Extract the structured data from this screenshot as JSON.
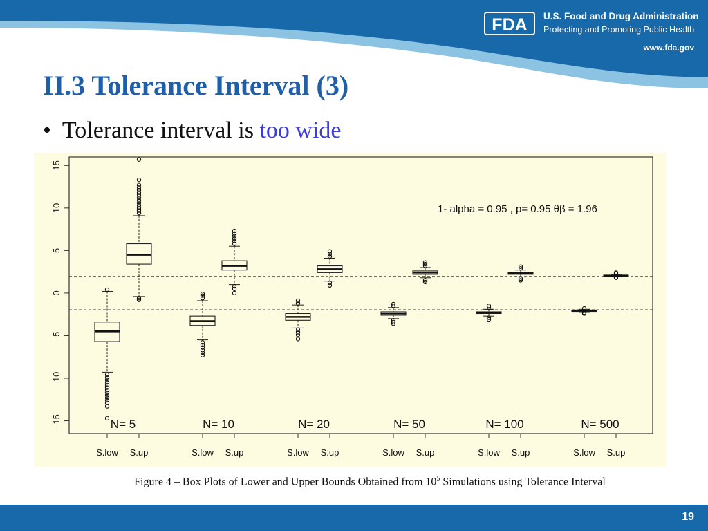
{
  "header": {
    "logo_text": "FDA",
    "org_name": "U.S. Food and Drug Administration",
    "tagline": "Protecting and Promoting Public Health",
    "url": "www.fda.gov",
    "colors": {
      "band": "#1769aa",
      "band_light": "#8cc3e3"
    }
  },
  "slide": {
    "title": "II.3 Tolerance Interval (3)",
    "bullet_text": "Tolerance interval is ",
    "bullet_highlight": "too wide",
    "bullet_glyph": "•",
    "page_number": "19",
    "title_color": "#1f5ea8",
    "highlight_color": "#3b3be0"
  },
  "caption": {
    "prefix": "Figure 4 – Box Plots of Lower and Upper Bounds Obtained from 10",
    "superscript": "5",
    "suffix": " Simulations using Tolerance Interval"
  },
  "chart_data": {
    "type": "box",
    "ylim": [
      -16.5,
      16
    ],
    "yticks": [
      -15,
      -10,
      -5,
      0,
      5,
      10,
      15
    ],
    "annotation": "1- alpha = 0.95 , p= 0.95 θβ = 1.96",
    "reference_lines": [
      1.96,
      -1.96
    ],
    "background": "#fdfbe0",
    "groups": [
      {
        "label": "N= 5",
        "boxes": [
          {
            "label": "S.low",
            "whisker_low": -9.3,
            "q1": -5.7,
            "median": -4.5,
            "q3": -3.4,
            "whisker_high": 0.2,
            "outliers": [
              -9.6,
              -9.9,
              -10.2,
              -10.5,
              -10.8,
              -11.1,
              -11.4,
              -11.7,
              -12.0,
              -12.3,
              -12.6,
              -12.9,
              -13.3,
              0.4,
              -14.7
            ]
          },
          {
            "label": "S.up",
            "whisker_low": -0.4,
            "q1": 3.4,
            "median": 4.5,
            "q3": 5.8,
            "whisker_high": 9.1,
            "outliers": [
              9.4,
              9.7,
              10.0,
              10.3,
              10.6,
              10.9,
              11.2,
              11.5,
              11.8,
              12.1,
              12.4,
              12.7,
              13.3,
              15.7,
              -0.6,
              -0.8
            ]
          }
        ]
      },
      {
        "label": "N= 10",
        "boxes": [
          {
            "label": "S.low",
            "whisker_low": -5.5,
            "q1": -3.8,
            "median": -3.3,
            "q3": -2.7,
            "whisker_high": -0.9,
            "outliers": [
              -5.8,
              -6.1,
              -6.4,
              -6.7,
              -7.0,
              -7.3,
              -0.6,
              -0.3,
              -0.1
            ]
          },
          {
            "label": "S.up",
            "whisker_low": 1.0,
            "q1": 2.7,
            "median": 3.2,
            "q3": 3.8,
            "whisker_high": 5.5,
            "outliers": [
              5.8,
              6.1,
              6.4,
              6.7,
              7.0,
              7.3,
              0.8,
              0.5,
              0.0
            ]
          }
        ]
      },
      {
        "label": "N= 20",
        "boxes": [
          {
            "label": "S.low",
            "whisker_low": -4.1,
            "q1": -3.2,
            "median": -2.8,
            "q3": -2.4,
            "whisker_high": -1.4,
            "outliers": [
              -4.3,
              -4.6,
              -4.9,
              -5.4,
              -1.2,
              -0.9
            ]
          },
          {
            "label": "S.up",
            "whisker_low": 1.4,
            "q1": 2.4,
            "median": 2.8,
            "q3": 3.2,
            "whisker_high": 4.1,
            "outliers": [
              4.3,
              4.6,
              4.9,
              1.2,
              0.9
            ]
          }
        ]
      },
      {
        "label": "N= 50",
        "boxes": [
          {
            "label": "S.low",
            "whisker_low": -3.0,
            "q1": -2.6,
            "median": -2.4,
            "q3": -2.2,
            "whisker_high": -1.7,
            "outliers": [
              -3.2,
              -3.4,
              -3.6,
              -1.5,
              -1.3
            ]
          },
          {
            "label": "S.up",
            "whisker_low": 1.8,
            "q1": 2.2,
            "median": 2.4,
            "q3": 2.6,
            "whisker_high": 3.0,
            "outliers": [
              3.2,
              3.4,
              3.6,
              1.5,
              1.3
            ]
          }
        ]
      },
      {
        "label": "N= 100",
        "boxes": [
          {
            "label": "S.low",
            "whisker_low": -2.7,
            "q1": -2.4,
            "median": -2.3,
            "q3": -2.2,
            "whisker_high": -1.9,
            "outliers": [
              -2.9,
              -3.1,
              -1.7,
              -1.5
            ]
          },
          {
            "label": "S.up",
            "whisker_low": 1.9,
            "q1": 2.2,
            "median": 2.3,
            "q3": 2.4,
            "whisker_high": 2.7,
            "outliers": [
              2.9,
              3.1,
              1.7,
              1.5
            ]
          }
        ]
      },
      {
        "label": "N= 500",
        "boxes": [
          {
            "label": "S.low",
            "whisker_low": -2.2,
            "q1": -2.1,
            "median": -2.05,
            "q3": -2.0,
            "whisker_high": -1.9,
            "outliers": [
              -2.3,
              -2.4,
              -1.8
            ]
          },
          {
            "label": "S.up",
            "whisker_low": 1.9,
            "q1": 2.0,
            "median": 2.05,
            "q3": 2.1,
            "whisker_high": 2.2,
            "outliers": [
              2.3,
              2.4,
              1.8
            ]
          }
        ]
      }
    ]
  }
}
